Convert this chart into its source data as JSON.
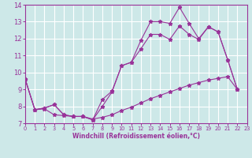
{
  "xlabel": "Windchill (Refroidissement éolien,°C)",
  "xlim": [
    0,
    23
  ],
  "ylim": [
    7,
    14
  ],
  "yticks": [
    7,
    8,
    9,
    10,
    11,
    12,
    13,
    14
  ],
  "xticks": [
    0,
    1,
    2,
    3,
    4,
    5,
    6,
    7,
    8,
    9,
    10,
    11,
    12,
    13,
    14,
    15,
    16,
    17,
    18,
    19,
    20,
    21,
    22,
    23
  ],
  "background_color": "#cde8e8",
  "line_color": "#993399",
  "grid_color": "#ffffff",
  "line1_x": [
    0,
    1,
    2,
    3,
    4,
    5,
    6,
    7,
    8,
    9,
    10,
    11,
    12,
    13,
    14,
    15,
    16,
    17,
    18,
    19,
    20,
    21,
    22
  ],
  "line1_y": [
    9.6,
    7.8,
    7.9,
    8.1,
    7.5,
    7.4,
    7.4,
    7.2,
    8.4,
    8.9,
    10.4,
    10.6,
    11.9,
    13.0,
    13.0,
    12.9,
    13.85,
    12.9,
    12.0,
    12.7,
    12.4,
    10.75,
    9.0
  ],
  "line2_x": [
    0,
    1,
    2,
    3,
    4,
    5,
    6,
    7,
    8,
    9,
    10,
    11,
    12,
    13,
    14,
    15,
    16,
    17,
    18,
    19,
    20,
    21,
    22
  ],
  "line2_y": [
    9.6,
    7.8,
    7.9,
    8.1,
    7.5,
    7.4,
    7.4,
    7.2,
    8.0,
    8.85,
    10.4,
    10.6,
    11.4,
    12.25,
    12.25,
    11.95,
    12.75,
    12.25,
    11.95,
    12.7,
    12.4,
    10.75,
    9.0
  ],
  "line3_x": [
    0,
    1,
    2,
    3,
    4,
    5,
    6,
    7,
    8,
    9,
    10,
    11,
    12,
    13,
    14,
    15,
    16,
    17,
    18,
    19,
    20,
    21,
    22
  ],
  "line3_y": [
    9.6,
    7.8,
    7.85,
    7.5,
    7.45,
    7.4,
    7.4,
    7.25,
    7.35,
    7.5,
    7.75,
    7.95,
    8.2,
    8.45,
    8.65,
    8.85,
    9.05,
    9.25,
    9.4,
    9.55,
    9.65,
    9.75,
    9.0
  ]
}
